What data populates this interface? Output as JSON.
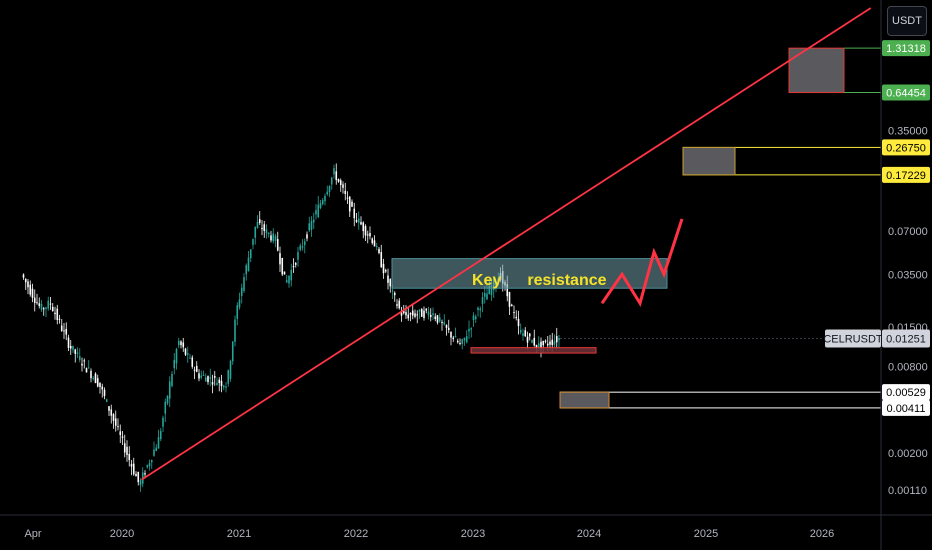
{
  "currency_button": "USDT",
  "annotation": {
    "word1": "Key",
    "word2": "resistance"
  },
  "symbol_tag": {
    "label": "CELRUSDT",
    "price": "0.01251"
  },
  "colors": {
    "background": "#000000",
    "candle_up": "#26a69a",
    "candle_down": "#ffffff",
    "trendline": "#ff3344",
    "resistance_box": "#4d8f9e",
    "green_tag": "#4caf50",
    "yellow_tag": "#ffeb3b",
    "red_zone": "#e53935"
  },
  "chart_data": {
    "type": "candlestick",
    "symbol": "CELRUSDT",
    "scale": "log",
    "x_axis_labels": [
      "Apr",
      "2020",
      "2021",
      "2022",
      "2023",
      "2024",
      "2025",
      "2026"
    ],
    "y_axis_labels": [
      "0.35000",
      "0.07000",
      "0.03500",
      "0.01500",
      "0.00800",
      "0.00200",
      "0.00110"
    ],
    "ylim": [
      0.0008,
      2.5
    ],
    "price_tags": [
      {
        "value": "1.31318",
        "color": "green"
      },
      {
        "value": "0.64454",
        "color": "green"
      },
      {
        "value": "0.26750",
        "color": "yellow"
      },
      {
        "value": "0.17229",
        "color": "yellow"
      },
      {
        "value": "0.00529",
        "color": "white"
      },
      {
        "value": "0.00411",
        "color": "white"
      }
    ],
    "current_price": "0.01251",
    "annotation_zone": {
      "name": "Key resistance",
      "low": 0.028,
      "high": 0.045
    },
    "support_zone": {
      "low": 0.0099,
      "high": 0.0108
    },
    "target_zones": [
      {
        "low": 0.64454,
        "high": 1.31318
      },
      {
        "low": 0.17229,
        "high": 0.2675
      },
      {
        "low": 0.00411,
        "high": 0.00529
      }
    ],
    "trendline": {
      "from": [
        "2020-03",
        0.0013
      ],
      "to": [
        "2026-06",
        2.5
      ]
    },
    "price_path": [
      {
        "date": "2019-03",
        "price": 0.035
      },
      {
        "date": "2019-05",
        "price": 0.02
      },
      {
        "date": "2019-06",
        "price": 0.022
      },
      {
        "date": "2019-08",
        "price": 0.011
      },
      {
        "date": "2019-11",
        "price": 0.006
      },
      {
        "date": "2020-03",
        "price": 0.0012
      },
      {
        "date": "2020-05",
        "price": 0.0025
      },
      {
        "date": "2020-07",
        "price": 0.012
      },
      {
        "date": "2020-09",
        "price": 0.007
      },
      {
        "date": "2020-12",
        "price": 0.006
      },
      {
        "date": "2021-01",
        "price": 0.02
      },
      {
        "date": "2021-03",
        "price": 0.08
      },
      {
        "date": "2021-05",
        "price": 0.06
      },
      {
        "date": "2021-06",
        "price": 0.03
      },
      {
        "date": "2021-09",
        "price": 0.09
      },
      {
        "date": "2021-11",
        "price": 0.18
      },
      {
        "date": "2022-01",
        "price": 0.09
      },
      {
        "date": "2022-03",
        "price": 0.06
      },
      {
        "date": "2022-05",
        "price": 0.025
      },
      {
        "date": "2022-06",
        "price": 0.018
      },
      {
        "date": "2022-09",
        "price": 0.019
      },
      {
        "date": "2022-12",
        "price": 0.011
      },
      {
        "date": "2023-02",
        "price": 0.022
      },
      {
        "date": "2023-04",
        "price": 0.035
      },
      {
        "date": "2023-06",
        "price": 0.014
      },
      {
        "date": "2023-08",
        "price": 0.011
      },
      {
        "date": "2023-10",
        "price": 0.0125
      }
    ],
    "projection": [
      0.022,
      0.035,
      0.022,
      0.05,
      0.035,
      0.085
    ]
  }
}
